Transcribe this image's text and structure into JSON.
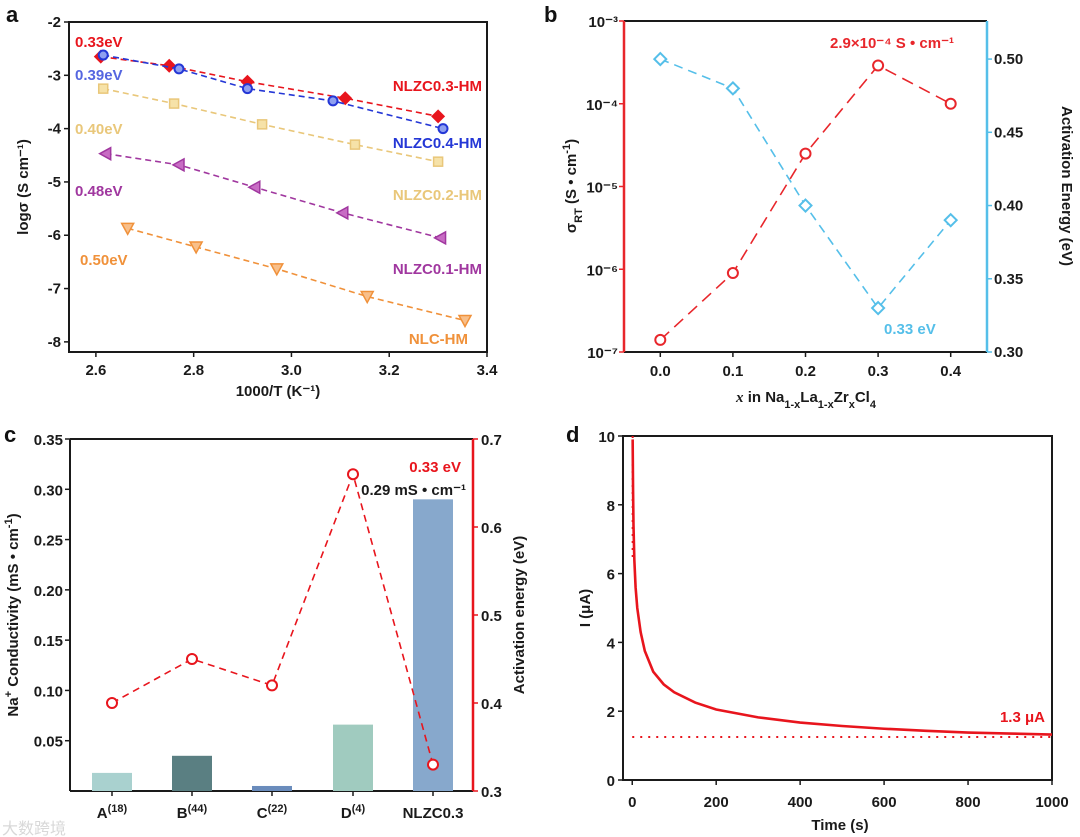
{
  "panels": {
    "a": "a",
    "b": "b",
    "c": "c",
    "d": "d"
  },
  "watermark": "大数跨境",
  "colors": {
    "red": "#e8151d",
    "blue": "#2437d6",
    "blue_text": "#5566e0",
    "yellow": "#e9c77a",
    "purple": "#a0379f",
    "orange": "#f0913a",
    "cyan": "#55bfe9",
    "black": "#1a1a1a"
  },
  "chart_data": [
    {
      "id": "a",
      "type": "scatter",
      "title": "",
      "xlabel": "1000/T (K⁻¹)",
      "ylabel": "logσ (S cm⁻¹)",
      "xlim": [
        2.545,
        3.4
      ],
      "ylim": [
        -8.19,
        -2
      ],
      "xticks": [
        "2.6",
        "2.8",
        "3.0",
        "3.2",
        "3.4"
      ],
      "xtick_values": [
        2.6,
        2.8,
        3.0,
        3.2,
        3.4
      ],
      "yticks": [
        "-2",
        "-3",
        "-4",
        "-5",
        "-6",
        "-7",
        "-8"
      ],
      "ytick_values": [
        -2,
        -3,
        -4,
        -5,
        -6,
        -7,
        -8
      ],
      "grid": false,
      "series": [
        {
          "name": "NLZC0.3-HM",
          "energy": "0.33eV",
          "color": "#e8151d",
          "marker": "diamond",
          "x": [
            2.61,
            2.75,
            2.91,
            3.11,
            3.3
          ],
          "y": [
            -2.65,
            -2.82,
            -3.12,
            -3.43,
            -3.77
          ]
        },
        {
          "name": "NLZC0.4-HM",
          "energy": "0.39eV",
          "color": "#2437d6",
          "marker": "circle",
          "x": [
            2.615,
            2.77,
            2.91,
            3.085,
            3.31
          ],
          "y": [
            -2.62,
            -2.88,
            -3.25,
            -3.48,
            -4.0
          ]
        },
        {
          "name": "NLZC0.2-HM",
          "energy": "0.40eV",
          "color": "#e9c77a",
          "marker": "square",
          "x": [
            2.615,
            2.76,
            2.94,
            3.13,
            3.3
          ],
          "y": [
            -3.25,
            -3.53,
            -3.92,
            -4.3,
            -4.62
          ]
        },
        {
          "name": "NLZC0.1-HM",
          "energy": "0.48eV",
          "color": "#a0379f",
          "marker": "tri-left",
          "x": [
            2.62,
            2.77,
            2.925,
            3.105,
            3.305
          ],
          "y": [
            -4.47,
            -4.68,
            -5.1,
            -5.58,
            -6.05
          ]
        },
        {
          "name": "NLC-HM",
          "energy": "0.50eV",
          "color": "#f0913a",
          "marker": "tri-down",
          "x": [
            2.665,
            2.805,
            2.97,
            3.155,
            3.355
          ],
          "y": [
            -5.87,
            -6.22,
            -6.63,
            -7.15,
            -7.6
          ]
        }
      ]
    },
    {
      "id": "b",
      "type": "line",
      "xlabel_parts": [
        {
          "t": "x",
          "s": "i"
        },
        {
          "t": " in Na",
          "s": ""
        },
        {
          "t": "1-x",
          "s": "sub"
        },
        {
          "t": "La",
          "s": ""
        },
        {
          "t": "1-x",
          "s": "sub"
        },
        {
          "t": "Zr",
          "s": ""
        },
        {
          "t": "x",
          "s": "sub"
        },
        {
          "t": "Cl",
          "s": ""
        },
        {
          "t": "4",
          "s": "sub"
        }
      ],
      "ylabel_left_parts": [
        {
          "t": "σ",
          "s": ""
        },
        {
          "t": "RT",
          "s": "sub"
        },
        {
          "t": " (S • cm",
          "s": ""
        },
        {
          "t": "-1",
          "s": "sup"
        },
        {
          "t": ")",
          "s": ""
        }
      ],
      "ylabel_right": "Activation Energy (eV)",
      "xlim": [
        -0.05,
        0.45
      ],
      "ylim_left_log10": [
        -7,
        -3
      ],
      "ylim_right": [
        0.3,
        0.526
      ],
      "xticks": [
        "0.0",
        "0.1",
        "0.2",
        "0.3",
        "0.4"
      ],
      "xtick_values": [
        0,
        0.1,
        0.2,
        0.3,
        0.4
      ],
      "yticks_left": [
        "10⁻³",
        "10⁻⁴",
        "10⁻⁵",
        "10⁻⁶",
        "10⁻⁷"
      ],
      "ytick_left_exponents": [
        -3,
        -4,
        -5,
        -6,
        -7
      ],
      "yticks_right": [
        "0.30",
        "0.35",
        "0.40",
        "0.45",
        "0.50"
      ],
      "ytick_right_values": [
        0.3,
        0.35,
        0.4,
        0.45,
        0.5
      ],
      "x": [
        0.0,
        0.1,
        0.2,
        0.3,
        0.4
      ],
      "series": [
        {
          "name": "σRT",
          "axis": "left",
          "scale": "log",
          "color": "#e8262b",
          "marker": "open-circle",
          "values": [
            1.4e-07,
            9e-07,
            2.5e-05,
            0.00029,
            0.0001
          ]
        },
        {
          "name": "Activation Energy",
          "axis": "right",
          "color": "#55bfe9",
          "marker": "open-diamond",
          "values": [
            0.5,
            0.48,
            0.4,
            0.33,
            0.39
          ]
        }
      ],
      "annotations": {
        "peak": "2.9×10⁻⁴ S • cm⁻¹",
        "min": "0.33 eV"
      }
    },
    {
      "id": "c",
      "type": "bar",
      "categories": [
        {
          "base": "A",
          "ref": "(18)"
        },
        {
          "base": "B",
          "ref": "(44)"
        },
        {
          "base": "C",
          "ref": "(22)"
        },
        {
          "base": "D",
          "ref": "(4)"
        },
        {
          "base": "NLZC0.3",
          "ref": ""
        }
      ],
      "values": [
        0.018,
        0.035,
        0.005,
        0.066,
        0.29
      ],
      "bar_colors": [
        "#a9d1cf",
        "#5a7f82",
        "#6a8cbc",
        "#a0cbbf",
        "#87a8cc"
      ],
      "ylabel_parts": [
        {
          "t": "Na",
          "s": ""
        },
        {
          "t": "+",
          "s": "sup"
        },
        {
          "t": " Conductivity (mS • cm",
          "s": ""
        },
        {
          "t": "-1",
          "s": "sup"
        },
        {
          "t": ")",
          "s": ""
        }
      ],
      "ylim": [
        0,
        0.35
      ],
      "yticks": [
        "0.05",
        "0.10",
        "0.15",
        "0.20",
        "0.25",
        "0.30",
        "0.35"
      ],
      "ytick_values": [
        0.05,
        0.1,
        0.15,
        0.2,
        0.25,
        0.3,
        0.35
      ],
      "ylabel_right": "Activation energy (eV)",
      "ylim_right": [
        0.3,
        0.7
      ],
      "yticks_right": [
        "0.3",
        "0.4",
        "0.5",
        "0.6",
        "0.7"
      ],
      "ytick_right_values": [
        0.3,
        0.4,
        0.5,
        0.6,
        0.7
      ],
      "line_series": {
        "name": "Activation energy",
        "color": "#e8151d",
        "values": [
          0.4,
          0.45,
          0.42,
          0.66,
          0.33
        ]
      },
      "annotations": {
        "ea": "0.33 eV",
        "cond": "0.29 mS • cm⁻¹"
      }
    },
    {
      "id": "d",
      "type": "line",
      "xlabel": "Time (s)",
      "ylabel": "I (μA)",
      "xlim": [
        -22,
        1000
      ],
      "ylim": [
        0,
        10
      ],
      "xticks": [
        "0",
        "200",
        "400",
        "600",
        "800",
        "1000"
      ],
      "xtick_values": [
        0,
        200,
        400,
        600,
        800,
        1000
      ],
      "yticks": [
        "0",
        "2",
        "4",
        "6",
        "8",
        "10"
      ],
      "ytick_values": [
        0,
        2,
        4,
        6,
        8,
        10
      ],
      "series": [
        {
          "name": "current",
          "color": "#e8151d",
          "x": [
            1,
            2,
            3,
            5,
            8,
            12,
            20,
            30,
            50,
            75,
            100,
            150,
            200,
            300,
            400,
            500,
            600,
            700,
            800,
            900,
            1000
          ],
          "y": [
            9.9,
            8.4,
            7.4,
            6.4,
            5.6,
            5.0,
            4.3,
            3.75,
            3.15,
            2.78,
            2.55,
            2.25,
            2.05,
            1.82,
            1.67,
            1.57,
            1.49,
            1.43,
            1.38,
            1.35,
            1.32
          ]
        }
      ],
      "steady_state_value": 1.25,
      "annotation": "1.3 μA"
    }
  ]
}
